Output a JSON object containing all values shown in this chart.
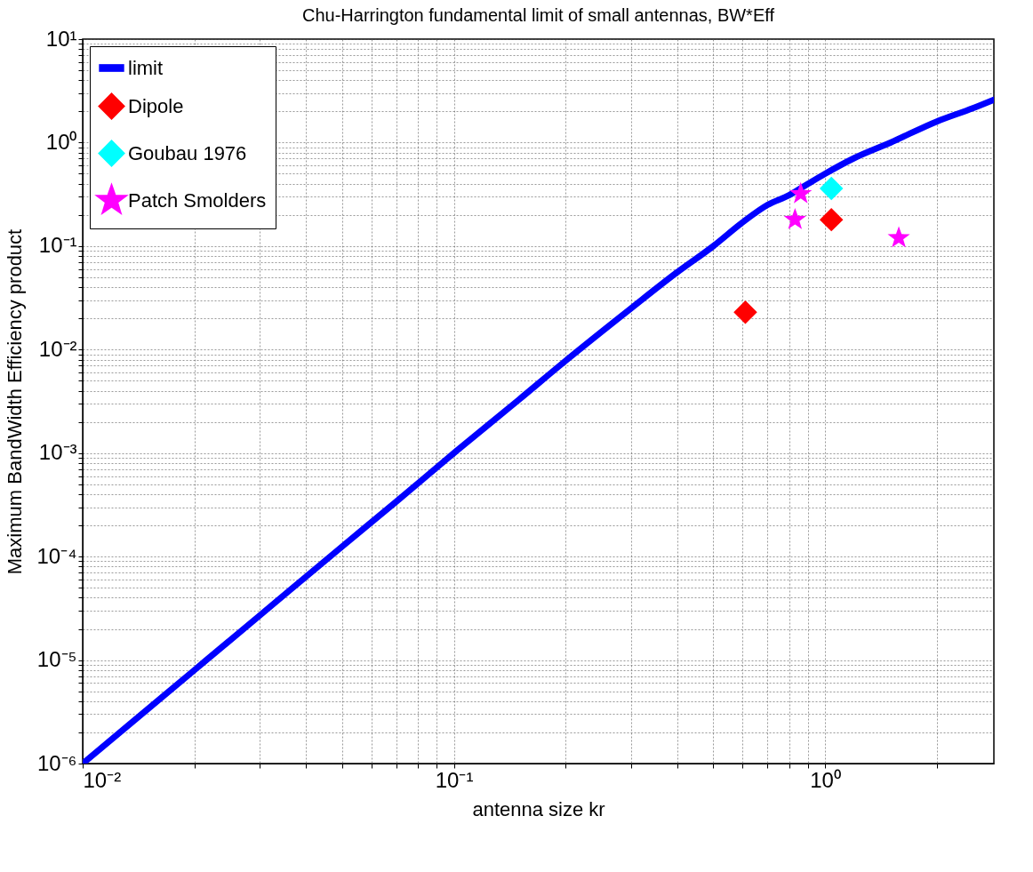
{
  "chart_data": {
    "type": "line",
    "title": "Chu-Harrington fundamental limit of small antennas, BW*Eff",
    "xlabel": "antenna size kr",
    "ylabel": "Maximum BandWidth Efficiency product",
    "log": "xy",
    "grid": true,
    "legend": "top left",
    "xlim": [
      0.01,
      2.85
    ],
    "ylim": [
      1e-06,
      10
    ],
    "xticks": [
      {
        "value": 0.01,
        "label": "10⁻²"
      },
      {
        "value": 0.02,
        "label": null
      },
      {
        "value": 0.03,
        "label": null
      },
      {
        "value": 0.04,
        "label": null
      },
      {
        "value": 0.05,
        "label": null
      },
      {
        "value": 0.06,
        "label": null
      },
      {
        "value": 0.07,
        "label": null
      },
      {
        "value": 0.08,
        "label": null
      },
      {
        "value": 0.09,
        "label": null
      },
      {
        "value": 0.1,
        "label": "10⁻¹"
      },
      {
        "value": 0.2,
        "label": null
      },
      {
        "value": 0.3,
        "label": null
      },
      {
        "value": 0.4,
        "label": null
      },
      {
        "value": 0.5,
        "label": null
      },
      {
        "value": 0.6,
        "label": null
      },
      {
        "value": 0.7,
        "label": null
      },
      {
        "value": 0.8,
        "label": null
      },
      {
        "value": 0.9,
        "label": null
      },
      {
        "value": 1,
        "label": "10⁰"
      },
      {
        "value": 2,
        "label": null
      }
    ],
    "yticks": [
      {
        "value": 1e-06,
        "label": "10⁻⁶"
      },
      {
        "value": 2e-06,
        "label": null
      },
      {
        "value": 3e-06,
        "label": null
      },
      {
        "value": 4e-06,
        "label": null
      },
      {
        "value": 5e-06,
        "label": null
      },
      {
        "value": 6e-06,
        "label": null
      },
      {
        "value": 7e-06,
        "label": null
      },
      {
        "value": 8e-06,
        "label": null
      },
      {
        "value": 9e-06,
        "label": null
      },
      {
        "value": 1e-05,
        "label": "10⁻⁵"
      },
      {
        "value": 2e-05,
        "label": null
      },
      {
        "value": 3e-05,
        "label": null
      },
      {
        "value": 4e-05,
        "label": null
      },
      {
        "value": 5e-05,
        "label": null
      },
      {
        "value": 6e-05,
        "label": null
      },
      {
        "value": 7e-05,
        "label": null
      },
      {
        "value": 8e-05,
        "label": null
      },
      {
        "value": 9e-05,
        "label": null
      },
      {
        "value": 0.0001,
        "label": "10⁻⁴"
      },
      {
        "value": 0.0002,
        "label": null
      },
      {
        "value": 0.0003,
        "label": null
      },
      {
        "value": 0.0004,
        "label": null
      },
      {
        "value": 0.0005,
        "label": null
      },
      {
        "value": 0.0006,
        "label": null
      },
      {
        "value": 0.0007,
        "label": null
      },
      {
        "value": 0.0008,
        "label": null
      },
      {
        "value": 0.0009,
        "label": null
      },
      {
        "value": 0.001,
        "label": "10⁻³"
      },
      {
        "value": 0.002,
        "label": null
      },
      {
        "value": 0.003,
        "label": null
      },
      {
        "value": 0.004,
        "label": null
      },
      {
        "value": 0.005,
        "label": null
      },
      {
        "value": 0.006,
        "label": null
      },
      {
        "value": 0.007,
        "label": null
      },
      {
        "value": 0.008,
        "label": null
      },
      {
        "value": 0.009,
        "label": null
      },
      {
        "value": 0.01,
        "label": "10⁻²"
      },
      {
        "value": 0.02,
        "label": null
      },
      {
        "value": 0.03,
        "label": null
      },
      {
        "value": 0.04,
        "label": null
      },
      {
        "value": 0.05,
        "label": null
      },
      {
        "value": 0.06,
        "label": null
      },
      {
        "value": 0.07,
        "label": null
      },
      {
        "value": 0.08,
        "label": null
      },
      {
        "value": 0.09,
        "label": null
      },
      {
        "value": 0.1,
        "label": "10⁻¹"
      },
      {
        "value": 0.2,
        "label": null
      },
      {
        "value": 0.3,
        "label": null
      },
      {
        "value": 0.4,
        "label": null
      },
      {
        "value": 0.5,
        "label": null
      },
      {
        "value": 0.6,
        "label": null
      },
      {
        "value": 0.7,
        "label": null
      },
      {
        "value": 0.8,
        "label": null
      },
      {
        "value": 0.9,
        "label": null
      },
      {
        "value": 1,
        "label": "10⁰"
      },
      {
        "value": 2,
        "label": null
      },
      {
        "value": 3,
        "label": null
      },
      {
        "value": 4,
        "label": null
      },
      {
        "value": 5,
        "label": null
      },
      {
        "value": 6,
        "label": null
      },
      {
        "value": 7,
        "label": null
      },
      {
        "value": 8,
        "label": null
      },
      {
        "value": 9,
        "label": null
      },
      {
        "value": 10,
        "label": "10¹"
      }
    ],
    "series": [
      {
        "name": "limit",
        "type": "line",
        "color": "#0000ff",
        "marker": "none",
        "line_style": "solid",
        "x": [
          0.01,
          0.02,
          0.03,
          0.05,
          0.07,
          0.1,
          0.15,
          0.2,
          0.3,
          0.4,
          0.5,
          0.6,
          0.7,
          0.8,
          0.9,
          1,
          1.2,
          1.5,
          2,
          2.5,
          2.85
        ],
        "values": [
          1e-06,
          8e-06,
          2.7e-05,
          0.000125,
          0.00034,
          0.001,
          0.0033,
          0.0078,
          0.025,
          0.056,
          0.1,
          0.17,
          0.25,
          0.31,
          0.4,
          0.5,
          0.71,
          1.0,
          1.6,
          2.15,
          2.6
        ]
      },
      {
        "name": "Dipole",
        "type": "scatter",
        "color": "#ff0000",
        "marker": "diamond",
        "x": [
          0.61,
          1.04
        ],
        "values": [
          0.023,
          0.18
        ]
      },
      {
        "name": "Goubau 1976",
        "type": "scatter",
        "color": "#00ffff",
        "marker": "diamond",
        "x": [
          1.04
        ],
        "values": [
          0.36
        ]
      },
      {
        "name": "Patch Smolders",
        "type": "scatter",
        "color": "#ff00ff",
        "marker": "star",
        "x": [
          0.86,
          0.83,
          1.58
        ],
        "values": [
          0.32,
          0.18,
          0.12
        ]
      }
    ]
  }
}
